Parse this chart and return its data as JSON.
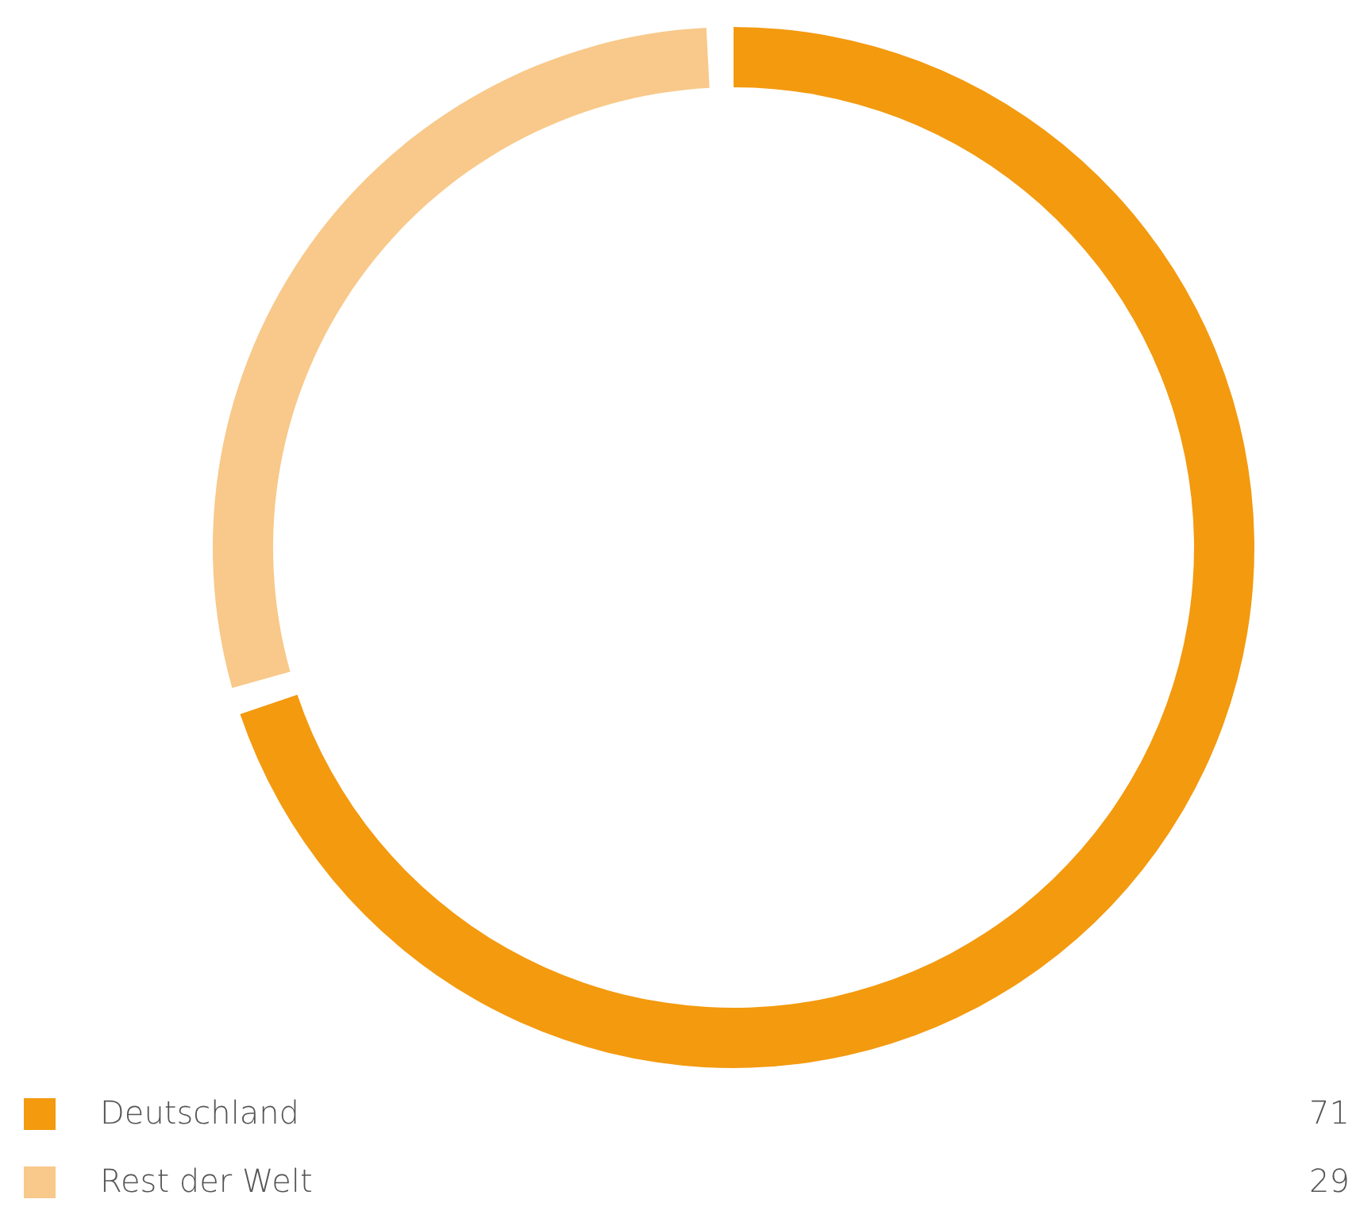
{
  "chart_data": {
    "type": "donut",
    "categories": [
      "Deutschland",
      "Rest der Welt"
    ],
    "values": [
      71,
      29
    ],
    "colors": [
      "#f39a0f",
      "#f8c98a"
    ],
    "legend": "bottom",
    "data_labels": true
  }
}
